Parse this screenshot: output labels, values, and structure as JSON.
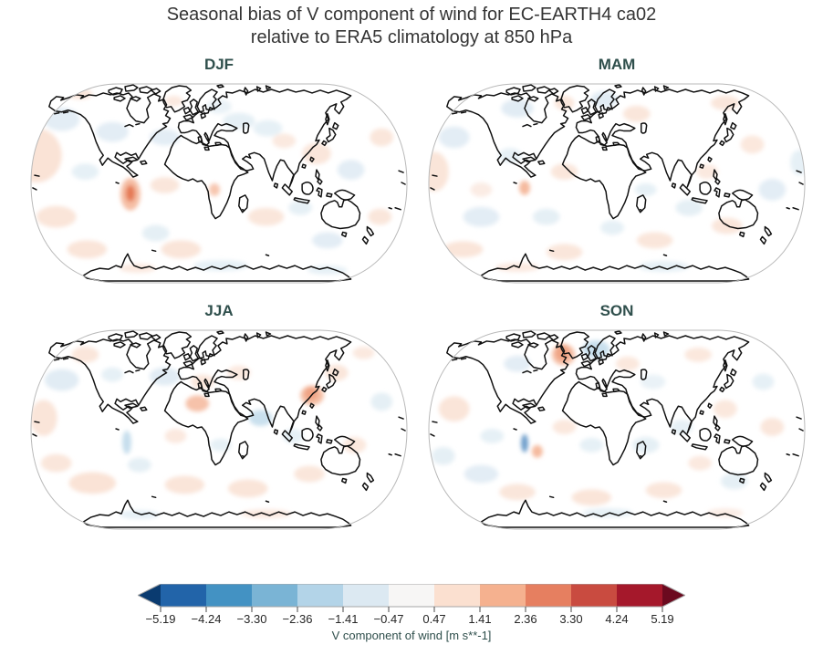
{
  "figure": {
    "title_line1": "Seasonal bias of V component of wind for EC-EARTH4 ca02",
    "title_line2": "relative to ERA5 climatology at 850 hPa"
  },
  "colors": {
    "title_text": "#353535",
    "panel_title_text": "#2f4f4c",
    "coastline": "#101010",
    "globe_edge": "#b9b9b9",
    "palette": {
      "a": "#f9e0d2",
      "b": "#dce9f2",
      "c": "#f3ae8d",
      "d": "#bcd8ea",
      "e": "#e2714e",
      "f": "#5e93c5"
    }
  },
  "panels": [
    {
      "label": "DJF",
      "blobs": [
        [
          8,
          82,
          28,
          30,
          "a",
          0.9
        ],
        [
          150,
          115,
          16,
          9,
          "a",
          0.8
        ],
        [
          36,
          42,
          20,
          13,
          "b",
          0.8
        ],
        [
          92,
          56,
          18,
          11,
          "b",
          0.8
        ],
        [
          62,
          100,
          15,
          9,
          "b",
          0.7
        ],
        [
          30,
          150,
          22,
          12,
          "a",
          0.85
        ],
        [
          64,
          186,
          22,
          10,
          "a",
          0.85
        ],
        [
          112,
          125,
          11,
          18,
          "c",
          0.8
        ],
        [
          112,
          124,
          5,
          9,
          "e",
          0.9
        ],
        [
          150,
          62,
          17,
          9,
          "b",
          0.8
        ],
        [
          168,
          186,
          22,
          10,
          "a",
          0.85
        ],
        [
          140,
          168,
          15,
          9,
          "b",
          0.75
        ],
        [
          205,
          120,
          6,
          7,
          "c",
          0.7
        ],
        [
          232,
          44,
          18,
          9,
          "b",
          0.75
        ],
        [
          264,
          52,
          16,
          9,
          "b",
          0.7
        ],
        [
          282,
          66,
          13,
          8,
          "a",
          0.7
        ],
        [
          318,
          80,
          16,
          12,
          "a",
          0.8
        ],
        [
          356,
          98,
          15,
          11,
          "b",
          0.8
        ],
        [
          390,
          62,
          13,
          10,
          "a",
          0.8
        ],
        [
          262,
          150,
          20,
          10,
          "a",
          0.8
        ],
        [
          330,
          176,
          17,
          9,
          "b",
          0.8
        ],
        [
          300,
          140,
          13,
          8,
          "b",
          0.7
        ],
        [
          388,
          150,
          13,
          9,
          "a",
          0.8
        ],
        [
          212,
          204,
          30,
          6,
          "b",
          0.7
        ],
        [
          120,
          207,
          20,
          5,
          "a",
          0.7
        ],
        [
          330,
          209,
          22,
          5,
          "b",
          0.7
        ],
        [
          56,
          14,
          14,
          6,
          "a",
          0.8
        ],
        [
          210,
          28,
          14,
          8,
          "b",
          0.6
        ],
        [
          160,
          22,
          10,
          6,
          "a",
          0.7
        ]
      ]
    },
    {
      "label": "MAM",
      "blobs": [
        [
          100,
          30,
          18,
          10,
          "b",
          0.85
        ],
        [
          152,
          24,
          11,
          8,
          "a",
          0.8
        ],
        [
          196,
          20,
          15,
          9,
          "b",
          0.85
        ],
        [
          232,
          36,
          15,
          9,
          "a",
          0.8
        ],
        [
          330,
          24,
          16,
          8,
          "a",
          0.8
        ],
        [
          30,
          62,
          17,
          12,
          "b",
          0.8
        ],
        [
          8,
          100,
          16,
          22,
          "a",
          0.85
        ],
        [
          92,
          82,
          13,
          8,
          "b",
          0.7
        ],
        [
          152,
          100,
          15,
          9,
          "a",
          0.8
        ],
        [
          108,
          118,
          6,
          8,
          "c",
          0.85
        ],
        [
          132,
          150,
          15,
          9,
          "b",
          0.75
        ],
        [
          60,
          150,
          20,
          11,
          "b",
          0.8
        ],
        [
          40,
          186,
          22,
          9,
          "a",
          0.85
        ],
        [
          152,
          189,
          20,
          9,
          "a",
          0.8
        ],
        [
          252,
          176,
          20,
          9,
          "a",
          0.8
        ],
        [
          332,
          160,
          17,
          9,
          "a",
          0.8
        ],
        [
          290,
          140,
          15,
          9,
          "b",
          0.75
        ],
        [
          382,
          120,
          15,
          12,
          "b",
          0.8
        ],
        [
          360,
          70,
          13,
          10,
          "a",
          0.75
        ],
        [
          310,
          100,
          12,
          8,
          "a",
          0.7
        ],
        [
          242,
          120,
          12,
          7,
          "b",
          0.7
        ],
        [
          205,
          162,
          13,
          8,
          "b",
          0.7
        ],
        [
          262,
          205,
          28,
          6,
          "b",
          0.7
        ],
        [
          100,
          206,
          24,
          5,
          "a",
          0.7
        ],
        [
          412,
          90,
          10,
          14,
          "b",
          0.7
        ],
        [
          60,
          120,
          12,
          8,
          "a",
          0.6
        ]
      ]
    },
    {
      "label": "JJA",
      "blobs": [
        [
          36,
          58,
          19,
          12,
          "b",
          0.85
        ],
        [
          16,
          100,
          15,
          20,
          "a",
          0.85
        ],
        [
          62,
          30,
          15,
          9,
          "a",
          0.8
        ],
        [
          150,
          54,
          17,
          10,
          "b",
          0.85
        ],
        [
          186,
          84,
          13,
          9,
          "c",
          0.75
        ],
        [
          192,
          60,
          13,
          8,
          "a",
          0.8
        ],
        [
          232,
          50,
          13,
          8,
          "a",
          0.7
        ],
        [
          312,
          73,
          7,
          7,
          "e",
          0.95
        ],
        [
          313,
          75,
          13,
          11,
          "c",
          0.8
        ],
        [
          340,
          50,
          13,
          9,
          "a",
          0.8
        ],
        [
          256,
          100,
          13,
          9,
          "d",
          0.8
        ],
        [
          108,
          127,
          5,
          13,
          "d",
          0.85
        ],
        [
          122,
          152,
          13,
          8,
          "b",
          0.75
        ],
        [
          70,
          172,
          26,
          12,
          "a",
          0.9
        ],
        [
          30,
          150,
          17,
          10,
          "a",
          0.8
        ],
        [
          172,
          174,
          22,
          10,
          "a",
          0.85
        ],
        [
          242,
          178,
          22,
          10,
          "a",
          0.85
        ],
        [
          310,
          162,
          17,
          9,
          "a",
          0.8
        ],
        [
          292,
          120,
          12,
          8,
          "b",
          0.7
        ],
        [
          360,
          130,
          13,
          9,
          "a",
          0.75
        ],
        [
          390,
          82,
          12,
          10,
          "b",
          0.75
        ],
        [
          212,
          130,
          12,
          7,
          "b",
          0.7
        ],
        [
          162,
          120,
          12,
          8,
          "a",
          0.7
        ],
        [
          262,
          206,
          28,
          5,
          "a",
          0.7
        ],
        [
          122,
          207,
          22,
          5,
          "b",
          0.7
        ],
        [
          92,
          52,
          12,
          8,
          "b",
          0.7
        ],
        [
          370,
          28,
          12,
          7,
          "a",
          0.7
        ]
      ]
    },
    {
      "label": "SON",
      "blobs": [
        [
          150,
          28,
          8,
          9,
          "e",
          0.85
        ],
        [
          151,
          30,
          13,
          12,
          "c",
          0.75
        ],
        [
          187,
          24,
          15,
          10,
          "d",
          0.8
        ],
        [
          100,
          40,
          15,
          9,
          "b",
          0.8
        ],
        [
          222,
          40,
          13,
          8,
          "a",
          0.75
        ],
        [
          300,
          30,
          15,
          8,
          "a",
          0.75
        ],
        [
          30,
          90,
          17,
          14,
          "a",
          0.85
        ],
        [
          72,
          120,
          13,
          8,
          "b",
          0.7
        ],
        [
          108,
          128,
          4,
          10,
          "f",
          0.9
        ],
        [
          122,
          137,
          6,
          7,
          "c",
          0.85
        ],
        [
          152,
          110,
          13,
          8,
          "a",
          0.75
        ],
        [
          182,
          130,
          13,
          8,
          "b",
          0.7
        ],
        [
          242,
          130,
          15,
          9,
          "b",
          0.75
        ],
        [
          282,
          110,
          12,
          8,
          "b",
          0.7
        ],
        [
          330,
          90,
          13,
          10,
          "a",
          0.75
        ],
        [
          382,
          110,
          13,
          10,
          "a",
          0.8
        ],
        [
          60,
          162,
          19,
          10,
          "b",
          0.8
        ],
        [
          18,
          142,
          13,
          10,
          "b",
          0.75
        ],
        [
          100,
          182,
          20,
          9,
          "a",
          0.8
        ],
        [
          182,
          188,
          22,
          9,
          "a",
          0.85
        ],
        [
          262,
          180,
          20,
          9,
          "a",
          0.8
        ],
        [
          340,
          170,
          15,
          9,
          "b",
          0.75
        ],
        [
          302,
          150,
          13,
          8,
          "a",
          0.7
        ],
        [
          372,
          60,
          12,
          9,
          "b",
          0.7
        ],
        [
          200,
          205,
          28,
          5,
          "b",
          0.7
        ],
        [
          330,
          205,
          20,
          5,
          "a",
          0.6
        ],
        [
          250,
          60,
          14,
          8,
          "b",
          0.6
        ]
      ]
    }
  ],
  "colorbar": {
    "label": "V component of wind [m s**-1]",
    "tick_labels": [
      "−5.19",
      "−4.24",
      "−3.30",
      "−2.36",
      "−1.41",
      "−0.47",
      "0.47",
      "1.41",
      "2.36",
      "3.30",
      "4.24",
      "5.19"
    ],
    "extend_left_color": "#0a3b70",
    "extend_right_color": "#6b0a1f",
    "segment_colors": [
      "#2264a9",
      "#4392c3",
      "#7ab4d5",
      "#b3d4e8",
      "#dce9f2",
      "#f7f6f5",
      "#fbe0d0",
      "#f5b18f",
      "#e67f60",
      "#c94b40",
      "#a5182b"
    ]
  },
  "chart_data": {
    "type": "heatmap",
    "subtype": "filled-contour world maps, 2x2 seasonal grid",
    "projection": "Robinson",
    "title": "Seasonal bias of V component of wind for EC-EARTH4 ca02 relative to ERA5 climatology at 850 hPa",
    "panels": [
      "DJF",
      "MAM",
      "JJA",
      "SON"
    ],
    "colorbar_label": "V component of wind [m s**-1]",
    "levels": [
      -5.19,
      -4.24,
      -3.3,
      -2.36,
      -1.41,
      -0.47,
      0.47,
      1.41,
      2.36,
      3.3,
      4.24,
      5.19
    ],
    "extend": "both",
    "colormap": "RdBu_r (discrete, 11 classes + 2 arrow extensions)",
    "value_range": [
      -5.19,
      5.19
    ],
    "legend_position": "bottom center",
    "notable_features": [
      "Biases are mostly weak (within ±1.41 m s**-1): pale red and pale blue patches over oceans and continents",
      "DJF: strong positive (salmon/red) bias spot over the Andes (Peru/Bolivia)",
      "JJA: strong positive bias spot over eastern China; negative bias over Arabian Sea; negative streak along Peru coast",
      "SON: strong negative (blue) spot along Peru coast, positive spot over Bolivia, positive spot in Labrador Sea southwest of Greenland, negative over Norwegian Sea",
      "MAM: generally weakest biases; scattered faint patches"
    ]
  }
}
